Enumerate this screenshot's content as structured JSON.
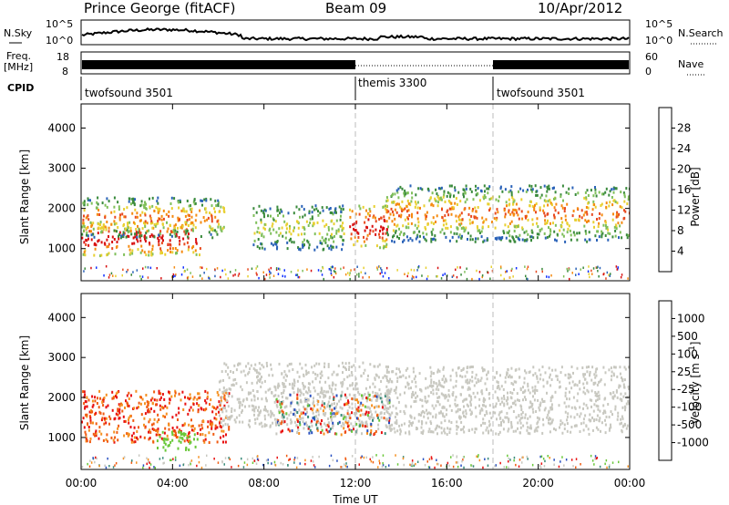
{
  "header": {
    "title": "Prince George (fitACF)",
    "beam": "Beam 09",
    "date": "10/Apr/2012"
  },
  "panels_top": {
    "nsky_label": "N.Sky",
    "nsky_ticks": [
      "10^5",
      "10^0"
    ],
    "nsearch_label": "N.Search",
    "freq_label_1": "Freq.",
    "freq_label_2": "[MHz]",
    "freq_ticks": [
      "18",
      "8"
    ],
    "nave_ticks": [
      "60",
      "0"
    ],
    "nave_label": "Nave",
    "cpid_label": "CPID",
    "cpid_segments": [
      "twofsound 3501",
      "themis 3300",
      "twofsound 3501"
    ]
  },
  "x_axis": {
    "label": "Time UT",
    "ticks": [
      "00:00",
      "04:00",
      "08:00",
      "12:00",
      "16:00",
      "20:00",
      "00:00"
    ]
  },
  "colors": {
    "power": [
      "#1030ff",
      "#2a62b8",
      "#3a8a3c",
      "#7fbf5a",
      "#e8d030",
      "#f58a10",
      "#e84a20",
      "#d81010"
    ],
    "velocity": [
      "#e81010",
      "#f05a10",
      "#f59020",
      "#c8c8c0",
      "#c8c8c0",
      "#6ac83a",
      "#3a8c7a",
      "#2850c0"
    ]
  },
  "chart_data": [
    {
      "type": "heatmap",
      "name": "power",
      "ylabel": "Slant Range [km]",
      "yticks": [
        "1000",
        "2000",
        "3000",
        "4000"
      ],
      "ylim": [
        200,
        4600
      ],
      "xlim": [
        0,
        24
      ],
      "colorbar_label": "Power [dB]",
      "colorbar_ticks": [
        "4",
        "8",
        "12",
        "16",
        "20",
        "24",
        "28"
      ],
      "echo_regions": [
        {
          "t0": 0.0,
          "t1": 5.2,
          "r0": 850,
          "r1": 1700,
          "level": "high"
        },
        {
          "t0": 0.0,
          "t1": 6.3,
          "r0": 1300,
          "r1": 2300,
          "level": "medium"
        },
        {
          "t0": 7.5,
          "t1": 11.5,
          "r0": 1000,
          "r1": 2100,
          "level": "low"
        },
        {
          "t0": 11.7,
          "t1": 13.4,
          "r0": 1050,
          "r1": 2100,
          "level": "high"
        },
        {
          "t0": 13.3,
          "t1": 24.0,
          "r0": 1200,
          "r1": 2600,
          "level": "medium"
        }
      ]
    },
    {
      "type": "heatmap",
      "name": "velocity",
      "ylabel": "Slant Range [km]",
      "yticks": [
        "1000",
        "2000",
        "3000",
        "4000"
      ],
      "ylim": [
        200,
        4600
      ],
      "xlim": [
        0,
        24
      ],
      "colorbar_label": "Velocity [m s^-1]",
      "colorbar_ticks": [
        "1000",
        "500",
        "100",
        "25",
        "-25",
        "-100",
        "-500",
        "-1000"
      ],
      "echo_regions": [
        {
          "t0": 0.0,
          "t1": 6.5,
          "r0": 900,
          "r1": 2200,
          "level": "negative"
        },
        {
          "t0": 3.3,
          "t1": 5.1,
          "r0": 700,
          "r1": 1200,
          "level": "positive"
        },
        {
          "t0": 6.0,
          "t1": 13.5,
          "r0": 1300,
          "r1": 2900,
          "level": "near-zero"
        },
        {
          "t0": 8.5,
          "t1": 13.5,
          "r0": 1100,
          "r1": 2100,
          "level": "mixed"
        },
        {
          "t0": 13.3,
          "t1": 24.0,
          "r0": 1100,
          "r1": 2800,
          "level": "near-zero"
        }
      ]
    }
  ]
}
